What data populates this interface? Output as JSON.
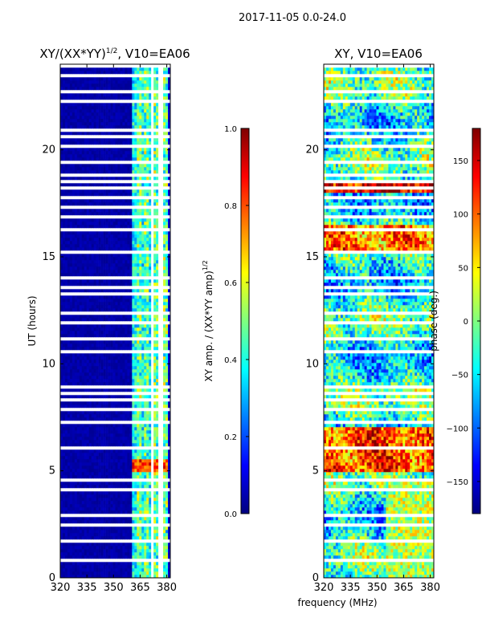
{
  "figure": {
    "suptitle": "2017-11-05 0.0-24.0",
    "xlabel": "frequency (MHz)",
    "ylabel": "UT (hours)"
  },
  "colors": {
    "jet": [
      "#00007f",
      "#0000ff",
      "#007fff",
      "#00ffff",
      "#7fff7f",
      "#ffff00",
      "#ff7f00",
      "#ff0000",
      "#7f0000"
    ],
    "gap": "#ffffff"
  },
  "chart_data": [
    {
      "type": "heatmap",
      "title": "XY/(XX*YY)^1/2, V10=EA06",
      "title_main": "XY/(XX*YY)",
      "title_sup": "1/2",
      "title_tail": ", V10=EA06",
      "xlabel": "frequency (MHz)",
      "ylabel": "UT (hours)",
      "xlim": [
        320,
        382
      ],
      "ylim": [
        0,
        24
      ],
      "xticks": [
        "320",
        "335",
        "350",
        "365",
        "380"
      ],
      "yticks": [
        "0",
        "5",
        "10",
        "15",
        "20"
      ],
      "colorbar": {
        "label_main": "XY amp. / (XX*YY amp)",
        "label_sup": "1/2",
        "range": [
          0.0,
          1.0
        ],
        "ticks": [
          "0.0",
          "0.2",
          "0.4",
          "0.6",
          "0.8",
          "1.0"
        ]
      },
      "features": {
        "band_mhz": [
          361,
          380
        ],
        "strong_ut": [
          5.0,
          5.5
        ],
        "description_values": "low amplitude (~0.05) below 361 MHz; 0.2-0.8 in 361-380 MHz band; peak ~0.9 near 5.2 UT"
      }
    },
    {
      "type": "heatmap",
      "title": "XY, V10=EA06",
      "xlabel": "frequency (MHz)",
      "xlim": [
        320,
        382
      ],
      "ylim": [
        0,
        24
      ],
      "xticks": [
        "320",
        "335",
        "350",
        "365",
        "380"
      ],
      "yticks": [
        "0",
        "5",
        "10",
        "15",
        "20"
      ],
      "colorbar": {
        "label": "phase (deg.)",
        "range": [
          -180,
          180
        ],
        "ticks": [
          "-150",
          "-100",
          "-50",
          "0",
          "50",
          "100",
          "150"
        ]
      }
    }
  ],
  "data_gaps_ut": [
    0.8,
    1.5,
    1.7,
    2.5,
    2.9,
    3.3,
    3.6,
    4.1,
    4.6,
    4.8,
    5.7,
    6.1,
    6.9,
    7.3,
    7.5,
    7.9,
    8.3,
    8.6,
    8.9,
    9.3,
    9.9,
    10.6,
    11.2,
    11.9,
    12.4,
    12.9,
    13.3,
    13.6,
    14.0,
    14.4,
    14.7,
    15.2,
    15.6,
    16.3,
    16.9,
    17.3,
    17.8,
    18.2,
    18.5,
    18.8,
    19.4,
    20.2,
    20.6,
    20.9,
    21.9,
    22.3,
    22.7,
    23.1,
    23.5,
    23.9
  ]
}
